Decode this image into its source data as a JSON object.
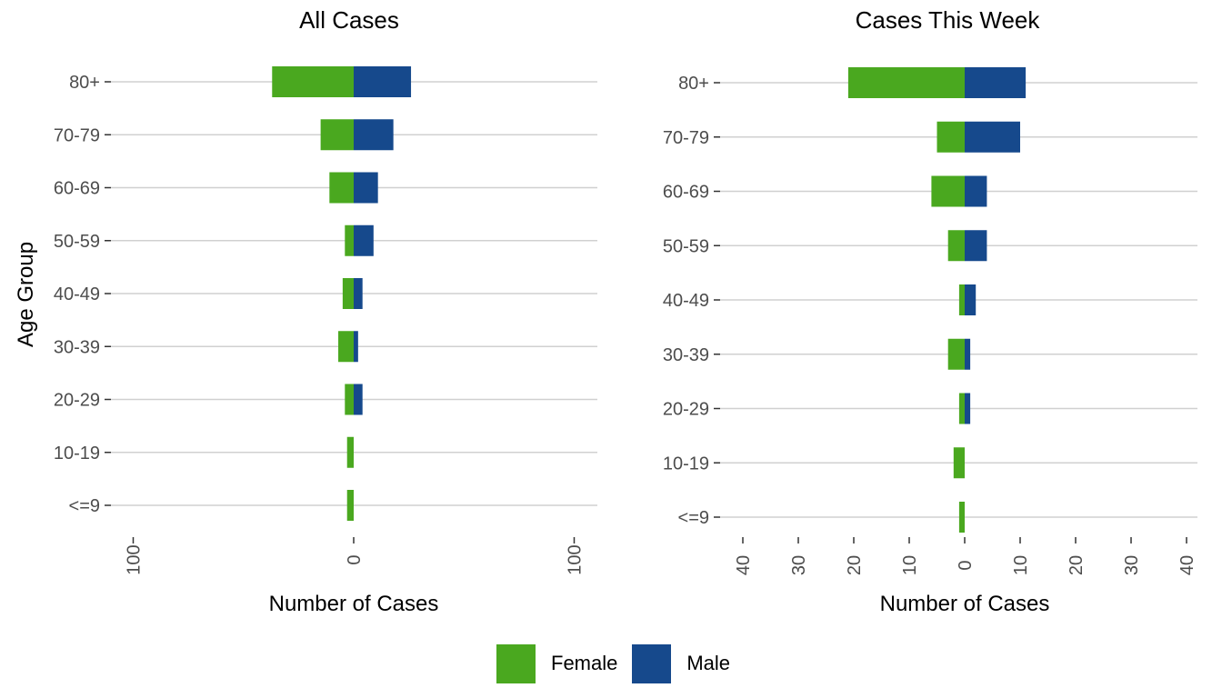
{
  "colors": {
    "female": "#4aa81f",
    "male": "#16498c",
    "grid": "#d0d0d0",
    "tick_text": "#4d4d4d",
    "text": "#000000"
  },
  "chart_data": [
    {
      "type": "bar",
      "title": "All Cases",
      "xlabel": "Number of Cases",
      "ylabel": "Age Group",
      "categories": [
        "80+",
        "70-79",
        "60-69",
        "50-59",
        "40-49",
        "30-39",
        "20-29",
        "10-19",
        "<=9"
      ],
      "xlim": [
        -100,
        100
      ],
      "xticks": [
        -100,
        0,
        100
      ],
      "xtick_labels": [
        "100",
        "0",
        "100"
      ],
      "series": [
        {
          "name": "Female",
          "values": [
            37,
            15,
            11,
            4,
            5,
            7,
            4,
            3,
            3
          ]
        },
        {
          "name": "Male",
          "values": [
            26,
            18,
            11,
            9,
            4,
            2,
            4,
            0,
            0
          ]
        }
      ]
    },
    {
      "type": "bar",
      "title": "Cases This Week",
      "xlabel": "Number of Cases",
      "ylabel": "",
      "categories": [
        "80+",
        "70-79",
        "60-69",
        "50-59",
        "40-49",
        "30-39",
        "20-29",
        "10-19",
        "<=9"
      ],
      "xlim": [
        -40,
        40
      ],
      "xticks": [
        -40,
        -30,
        -20,
        -10,
        0,
        10,
        20,
        30,
        40
      ],
      "xtick_labels": [
        "40",
        "30",
        "20",
        "10",
        "0",
        "10",
        "20",
        "30",
        "40"
      ],
      "series": [
        {
          "name": "Female",
          "values": [
            21,
            5,
            6,
            3,
            1,
            3,
            1,
            2,
            1
          ]
        },
        {
          "name": "Male",
          "values": [
            11,
            10,
            4,
            4,
            2,
            1,
            1,
            0,
            0
          ]
        }
      ]
    }
  ],
  "legend": {
    "items": [
      {
        "label": "Female"
      },
      {
        "label": "Male"
      }
    ]
  }
}
